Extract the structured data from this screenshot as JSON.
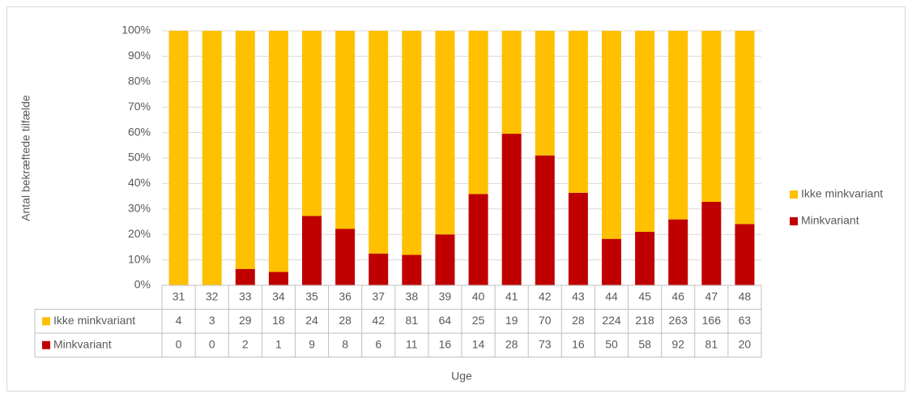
{
  "chart_data": {
    "type": "bar",
    "stacked": "percent",
    "ylabel": "Antal bekræftede tilfælde",
    "xlabel": "Uge",
    "categories": [
      "31",
      "32",
      "33",
      "34",
      "35",
      "36",
      "37",
      "38",
      "39",
      "40",
      "41",
      "42",
      "43",
      "44",
      "45",
      "46",
      "47",
      "48"
    ],
    "series": [
      {
        "name": "Ikke minkvariant",
        "color": "#ffc000",
        "values": [
          4,
          3,
          29,
          18,
          24,
          28,
          42,
          81,
          64,
          25,
          19,
          70,
          28,
          224,
          218,
          263,
          166,
          63
        ]
      },
      {
        "name": "Minkvariant",
        "color": "#c00000",
        "values": [
          0,
          0,
          2,
          1,
          9,
          8,
          6,
          11,
          16,
          14,
          28,
          73,
          16,
          50,
          58,
          92,
          81,
          20
        ]
      }
    ],
    "ylim": [
      0,
      100
    ],
    "yticks": [
      {
        "value": 0,
        "label": "0%"
      },
      {
        "value": 10,
        "label": "10%"
      },
      {
        "value": 20,
        "label": "20%"
      },
      {
        "value": 30,
        "label": "30%"
      },
      {
        "value": 40,
        "label": "40%"
      },
      {
        "value": 50,
        "label": "50%"
      },
      {
        "value": 60,
        "label": "60%"
      },
      {
        "value": 70,
        "label": "70%"
      },
      {
        "value": 80,
        "label": "80%"
      },
      {
        "value": 90,
        "label": "90%"
      },
      {
        "value": 100,
        "label": "100%"
      }
    ],
    "grid": true,
    "legend": "right",
    "data_table": true
  }
}
